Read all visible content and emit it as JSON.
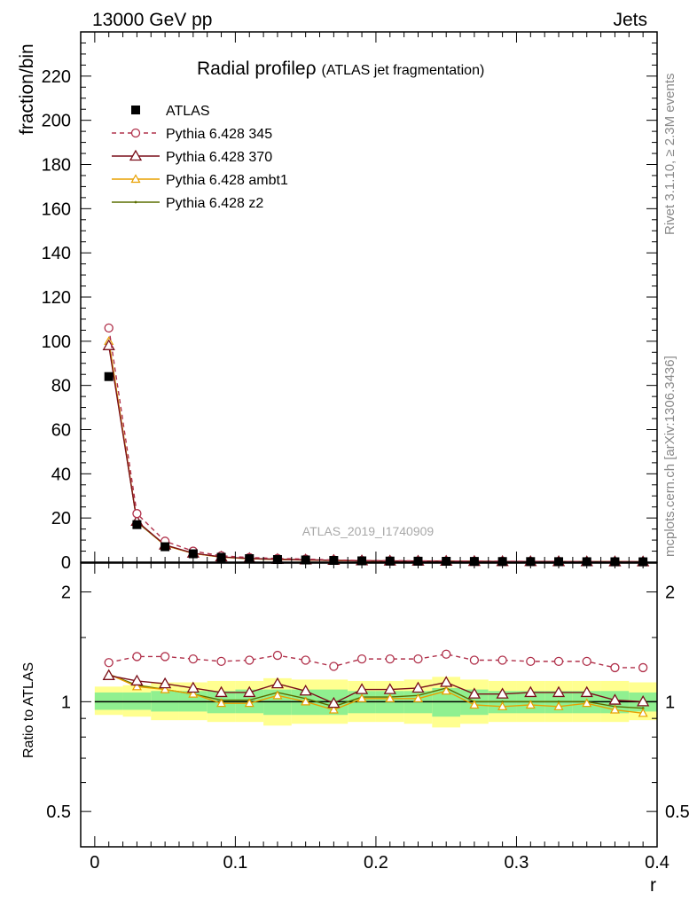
{
  "header": {
    "left": "13000 GeV pp",
    "right": "Jets"
  },
  "side": {
    "rivet": "Rivet 3.1.10, ≥ 2.3M events",
    "mcplots": "mcplots.cern.ch [arXiv:1306.3436]"
  },
  "colors": {
    "atlas": "#000000",
    "py345": "#b0304a",
    "py370": "#7a0f1a",
    "ambt1": "#e8a000",
    "z2": "#5a6e00",
    "band_inner": "#90f090",
    "band_outer": "#ffff90"
  },
  "chart_data": [
    {
      "type": "line",
      "title": "Radial profileρ",
      "title_note": "(ATLAS jet fragmentation)",
      "watermark": "ATLAS_2019_I1740909",
      "ylabel": "fraction/bin",
      "xlim": [
        -0.01,
        0.4
      ],
      "ylim": [
        0,
        240
      ],
      "yticks": [
        0,
        20,
        40,
        60,
        80,
        100,
        120,
        140,
        160,
        180,
        200,
        220
      ],
      "legend_position": "top-left",
      "x": [
        0.01,
        0.03,
        0.05,
        0.07,
        0.09,
        0.11,
        0.13,
        0.15,
        0.17,
        0.19,
        0.21,
        0.23,
        0.25,
        0.27,
        0.29,
        0.31,
        0.33,
        0.35,
        0.37,
        0.39
      ],
      "series": [
        {
          "name": "ATLAS",
          "values": [
            84,
            17,
            7,
            3.8,
            2.2,
            1.6,
            1.2,
            1.0,
            0.8,
            0.6,
            0.5,
            0.45,
            0.4,
            0.35,
            0.3,
            0.28,
            0.25,
            0.22,
            0.2,
            0.18
          ]
        },
        {
          "name": "Pythia 6.428 345",
          "values": [
            106,
            22,
            9.5,
            5,
            2.9,
            2.1,
            1.7,
            1.4,
            1.0,
            0.8,
            0.7,
            0.6,
            0.55,
            0.5,
            0.45,
            0.4,
            0.35,
            0.3,
            0.27,
            0.24
          ]
        },
        {
          "name": "Pythia 6.428 370",
          "values": [
            98,
            18.5,
            7.8,
            4.1,
            2.4,
            1.7,
            1.3,
            1.05,
            0.85,
            0.65,
            0.55,
            0.5,
            0.45,
            0.38,
            0.33,
            0.3,
            0.27,
            0.24,
            0.22,
            0.2
          ]
        },
        {
          "name": "Pythia 6.428 ambt1",
          "values": [
            100,
            18.5,
            7.6,
            4.0,
            2.3,
            1.6,
            1.25,
            1.0,
            0.8,
            0.6,
            0.5,
            0.45,
            0.42,
            0.35,
            0.3,
            0.28,
            0.25,
            0.22,
            0.2,
            0.17
          ]
        },
        {
          "name": "Pythia 6.428 z2",
          "values": [
            100,
            18.2,
            7.6,
            4.0,
            2.3,
            1.6,
            1.25,
            1.0,
            0.8,
            0.6,
            0.5,
            0.45,
            0.42,
            0.35,
            0.3,
            0.28,
            0.25,
            0.22,
            0.2,
            0.18
          ]
        }
      ]
    },
    {
      "type": "line",
      "ylabel": "Ratio to ATLAS",
      "xlabel": "r",
      "xlim": [
        -0.01,
        0.4
      ],
      "ylim": [
        0.4,
        2.4
      ],
      "yscale": "log",
      "yticks": [
        0.5,
        1,
        2
      ],
      "xticks": [
        0,
        0.1,
        0.2,
        0.3,
        0.4
      ],
      "x": [
        0.01,
        0.03,
        0.05,
        0.07,
        0.09,
        0.11,
        0.13,
        0.15,
        0.17,
        0.19,
        0.21,
        0.23,
        0.25,
        0.27,
        0.29,
        0.31,
        0.33,
        0.35,
        0.37,
        0.39
      ],
      "band_inner": {
        "low": [
          0.95,
          0.95,
          0.94,
          0.94,
          0.93,
          0.93,
          0.92,
          0.92,
          0.92,
          0.93,
          0.93,
          0.93,
          0.91,
          0.92,
          0.93,
          0.93,
          0.93,
          0.93,
          0.93,
          0.94
        ],
        "high": [
          1.06,
          1.06,
          1.07,
          1.07,
          1.07,
          1.08,
          1.08,
          1.08,
          1.08,
          1.07,
          1.07,
          1.07,
          1.09,
          1.08,
          1.07,
          1.07,
          1.07,
          1.07,
          1.07,
          1.06
        ]
      },
      "band_outer": {
        "low": [
          0.92,
          0.91,
          0.89,
          0.89,
          0.88,
          0.88,
          0.86,
          0.87,
          0.87,
          0.88,
          0.88,
          0.87,
          0.85,
          0.87,
          0.88,
          0.88,
          0.88,
          0.88,
          0.88,
          0.89
        ],
        "high": [
          1.1,
          1.11,
          1.13,
          1.13,
          1.14,
          1.14,
          1.16,
          1.15,
          1.15,
          1.14,
          1.14,
          1.15,
          1.17,
          1.15,
          1.14,
          1.14,
          1.14,
          1.14,
          1.14,
          1.13
        ]
      },
      "series": [
        {
          "name": "Pythia 6.428 345",
          "values": [
            1.28,
            1.33,
            1.33,
            1.31,
            1.29,
            1.3,
            1.34,
            1.3,
            1.25,
            1.31,
            1.31,
            1.31,
            1.35,
            1.3,
            1.3,
            1.29,
            1.29,
            1.29,
            1.24,
            1.24
          ]
        },
        {
          "name": "Pythia 6.428 370",
          "values": [
            1.18,
            1.14,
            1.12,
            1.09,
            1.06,
            1.06,
            1.12,
            1.07,
            0.99,
            1.08,
            1.08,
            1.09,
            1.13,
            1.05,
            1.05,
            1.06,
            1.06,
            1.06,
            1.01,
            1.0
          ]
        },
        {
          "name": "Pythia 6.428 ambt1",
          "values": [
            1.19,
            1.1,
            1.08,
            1.05,
            0.99,
            0.99,
            1.04,
            1.0,
            0.95,
            1.02,
            1.02,
            1.02,
            1.07,
            0.98,
            0.97,
            0.98,
            0.97,
            0.99,
            0.95,
            0.93
          ]
        },
        {
          "name": "Pythia 6.428 z2",
          "values": [
            1.19,
            1.11,
            1.08,
            1.05,
            1.01,
            1.01,
            1.06,
            1.02,
            0.97,
            1.03,
            1.03,
            1.04,
            1.09,
            1.0,
            1.0,
            1.0,
            1.0,
            1.0,
            0.97,
            0.96
          ]
        }
      ]
    }
  ]
}
